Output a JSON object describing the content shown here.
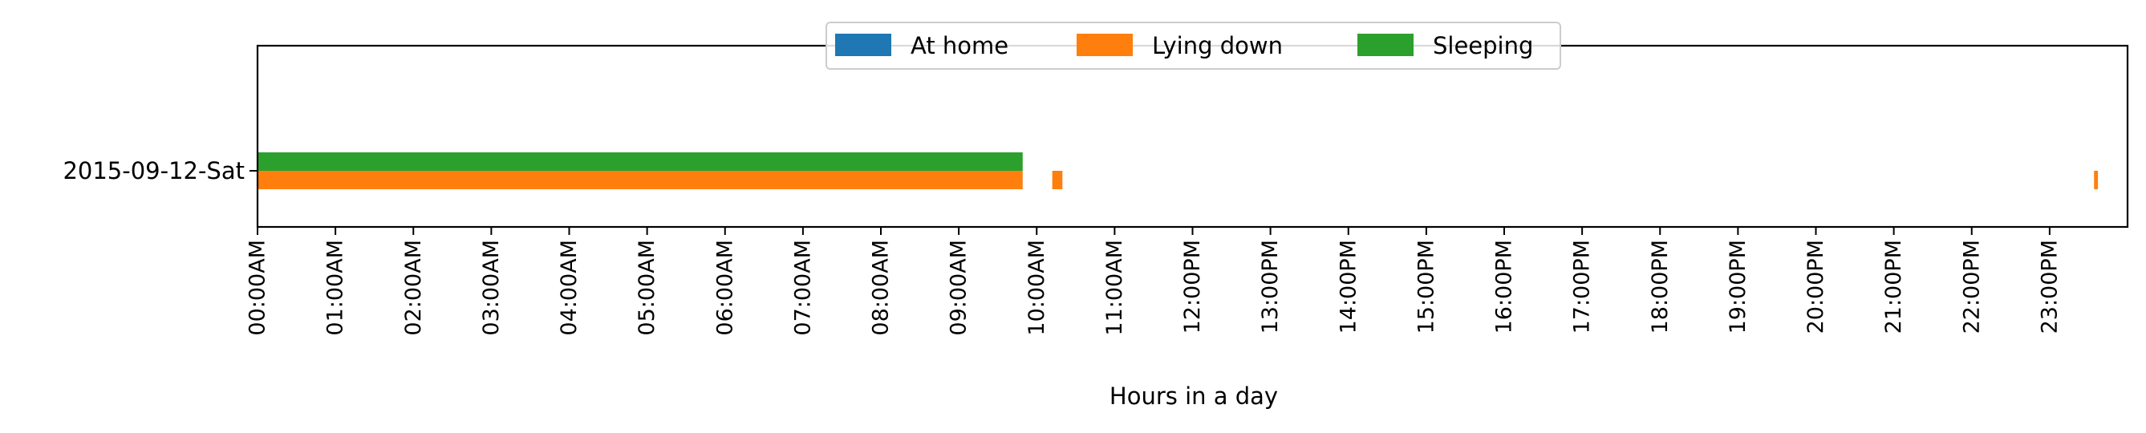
{
  "chart_data": {
    "type": "bar",
    "orientation": "horizontal",
    "title": "",
    "xlabel": "Hours in a day",
    "ylabel": "",
    "xlim": [
      0,
      24
    ],
    "categories": [
      "2015-09-12-Sat"
    ],
    "x_ticks": [
      {
        "value": 0,
        "label": "00:00AM"
      },
      {
        "value": 1,
        "label": "01:00AM"
      },
      {
        "value": 2,
        "label": "02:00AM"
      },
      {
        "value": 3,
        "label": "03:00AM"
      },
      {
        "value": 4,
        "label": "04:00AM"
      },
      {
        "value": 5,
        "label": "05:00AM"
      },
      {
        "value": 6,
        "label": "06:00AM"
      },
      {
        "value": 7,
        "label": "07:00AM"
      },
      {
        "value": 8,
        "label": "08:00AM"
      },
      {
        "value": 9,
        "label": "09:00AM"
      },
      {
        "value": 10,
        "label": "10:00AM"
      },
      {
        "value": 11,
        "label": "11:00AM"
      },
      {
        "value": 12,
        "label": "12:00PM"
      },
      {
        "value": 13,
        "label": "13:00PM"
      },
      {
        "value": 14,
        "label": "14:00PM"
      },
      {
        "value": 15,
        "label": "15:00PM"
      },
      {
        "value": 16,
        "label": "16:00PM"
      },
      {
        "value": 17,
        "label": "17:00PM"
      },
      {
        "value": 18,
        "label": "18:00PM"
      },
      {
        "value": 19,
        "label": "19:00PM"
      },
      {
        "value": 20,
        "label": "20:00PM"
      },
      {
        "value": 21,
        "label": "21:00PM"
      },
      {
        "value": 22,
        "label": "22:00PM"
      },
      {
        "value": 23,
        "label": "23:00PM"
      }
    ],
    "series": [
      {
        "name": "At home",
        "color": "#1f77b4",
        "intervals": []
      },
      {
        "name": "Lying down",
        "color": "#ff7f0e",
        "intervals": [
          [
            0,
            9.82
          ],
          [
            10.2,
            10.33
          ],
          [
            23.57,
            23.62
          ]
        ]
      },
      {
        "name": "Sleeping",
        "color": "#2ca02c",
        "intervals": [
          [
            0,
            9.82
          ]
        ]
      }
    ],
    "legend_position": "top-center",
    "grid": false
  }
}
